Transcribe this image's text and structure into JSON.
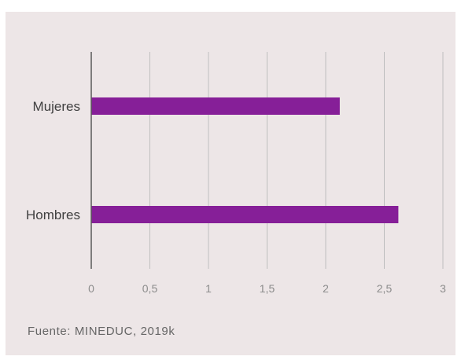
{
  "chart_data": {
    "type": "bar",
    "orientation": "horizontal",
    "categories": [
      "Mujeres",
      "Hombres"
    ],
    "values": [
      2.12,
      2.62
    ],
    "xlim": [
      0,
      3
    ],
    "xticks": [
      0,
      0.5,
      1,
      1.5,
      2,
      2.5,
      3
    ],
    "xtick_labels": [
      "0",
      "0,5",
      "1",
      "1,5",
      "2",
      "2,5",
      "3"
    ],
    "grid": "vertical",
    "bar_color": "#861f98",
    "gridline_color": "#bfbfbf",
    "axis_color": "#595959",
    "background_color": "#ede6e7"
  },
  "source": "Fuente: MINEDUC, 2019k"
}
